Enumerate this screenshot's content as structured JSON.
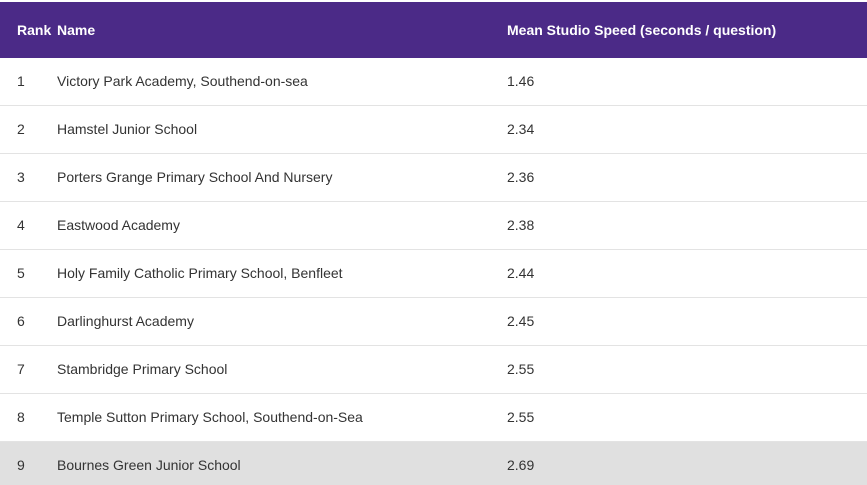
{
  "table": {
    "headers": {
      "rank": "Rank",
      "name": "Name",
      "speed": "Mean Studio Speed (seconds / question)"
    },
    "rows": [
      {
        "rank": "1",
        "name": "Victory Park Academy, Southend-on-sea",
        "speed": "1.46"
      },
      {
        "rank": "2",
        "name": "Hamstel Junior School",
        "speed": "2.34"
      },
      {
        "rank": "3",
        "name": "Porters Grange Primary School And Nursery",
        "speed": "2.36"
      },
      {
        "rank": "4",
        "name": "Eastwood Academy",
        "speed": "2.38"
      },
      {
        "rank": "5",
        "name": "Holy Family Catholic Primary School, Benfleet",
        "speed": "2.44"
      },
      {
        "rank": "6",
        "name": "Darlinghurst Academy",
        "speed": "2.45"
      },
      {
        "rank": "7",
        "name": "Stambridge Primary School",
        "speed": "2.55"
      },
      {
        "rank": "8",
        "name": "Temple Sutton Primary School, Southend-on-Sea",
        "speed": "2.55"
      },
      {
        "rank": "9",
        "name": "Bournes Green Junior School",
        "speed": "2.69"
      }
    ]
  },
  "colors": {
    "header_bg": "#4b2a87",
    "header_text": "#ffffff",
    "highlight_row_bg": "#e0e0e0"
  }
}
